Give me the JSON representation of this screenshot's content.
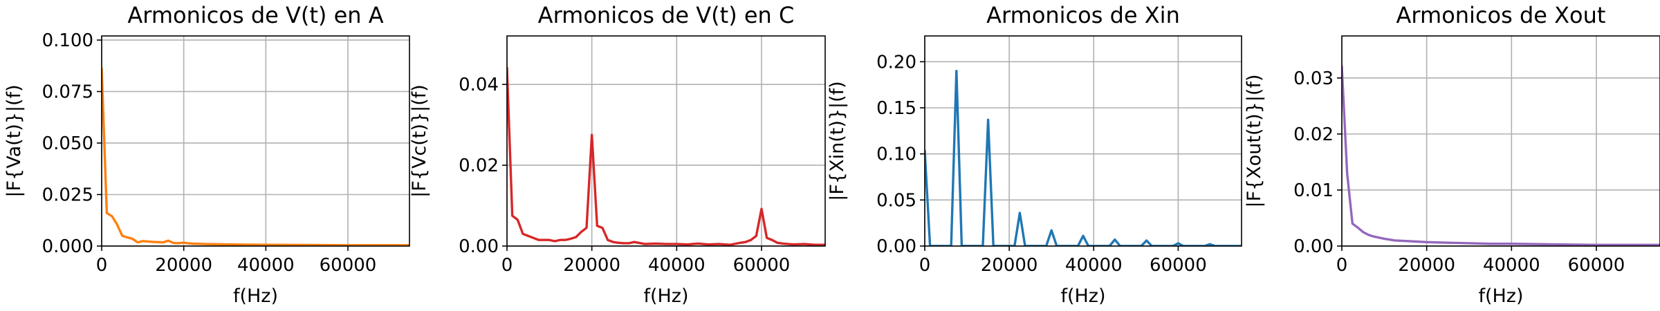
{
  "chart_data": [
    {
      "type": "line",
      "title": "Armonicos de V(t) en A",
      "xlabel": "f(Hz)",
      "ylabel": "|F{Va(t)}|(f)",
      "xlim": [
        0,
        75000
      ],
      "ylim": [
        0,
        0.102
      ],
      "xticks": [
        0,
        20000,
        40000,
        60000
      ],
      "xtick_labels": [
        "0",
        "20000",
        "40000",
        "60000"
      ],
      "yticks": [
        0,
        0.025,
        0.05,
        0.075,
        0.1
      ],
      "ytick_labels": [
        "0.000",
        "0.025",
        "0.050",
        "0.075",
        "0.100"
      ],
      "grid": true,
      "color": "#ff7f0e",
      "x": [
        0,
        1250,
        2500,
        3750,
        5000,
        6250,
        7500,
        8750,
        10000,
        11250,
        12500,
        13750,
        15000,
        16250,
        17500,
        18750,
        20000,
        21250,
        22500,
        23750,
        25000,
        30000,
        35000,
        40000,
        50000,
        60000,
        70000,
        75000
      ],
      "y": [
        0.086,
        0.016,
        0.0145,
        0.0105,
        0.005,
        0.0042,
        0.0035,
        0.0018,
        0.0024,
        0.0022,
        0.002,
        0.0019,
        0.0018,
        0.0026,
        0.0015,
        0.0014,
        0.0016,
        0.0013,
        0.0011,
        0.0011,
        0.001,
        0.0008,
        0.0007,
        0.0006,
        0.0005,
        0.0004,
        0.0004,
        0.0004
      ]
    },
    {
      "type": "line",
      "title": "Armonicos de V(t) en C",
      "xlabel": "f(Hz)",
      "ylabel": "|F{Vc(t)}|(f)",
      "xlim": [
        0,
        75000
      ],
      "ylim": [
        0,
        0.052
      ],
      "xticks": [
        0,
        20000,
        40000,
        60000
      ],
      "xtick_labels": [
        "0",
        "20000",
        "40000",
        "60000"
      ],
      "yticks": [
        0,
        0.02,
        0.04
      ],
      "ytick_labels": [
        "0.00",
        "0.02",
        "0.04"
      ],
      "grid": true,
      "color": "#d62728",
      "x": [
        0,
        1250,
        2500,
        3750,
        5000,
        6250,
        7500,
        8750,
        10000,
        11250,
        12500,
        13750,
        15000,
        16250,
        17500,
        18750,
        20000,
        21250,
        22500,
        23750,
        25000,
        26250,
        27500,
        28750,
        30000,
        32500,
        35000,
        37500,
        40000,
        42500,
        45000,
        47500,
        50000,
        52500,
        55000,
        56250,
        57500,
        58750,
        60000,
        61250,
        62500,
        63750,
        65000,
        67500,
        70000,
        72500,
        75000
      ],
      "y": [
        0.044,
        0.0075,
        0.0065,
        0.003,
        0.0025,
        0.002,
        0.0015,
        0.0015,
        0.0015,
        0.0012,
        0.0015,
        0.0015,
        0.0018,
        0.0022,
        0.0035,
        0.0045,
        0.0275,
        0.005,
        0.0045,
        0.0015,
        0.001,
        0.0008,
        0.0007,
        0.0007,
        0.001,
        0.0005,
        0.0006,
        0.0005,
        0.0005,
        0.0004,
        0.0006,
        0.0004,
        0.0005,
        0.0003,
        0.0008,
        0.001,
        0.0015,
        0.0025,
        0.0092,
        0.002,
        0.0015,
        0.0008,
        0.0006,
        0.0004,
        0.0005,
        0.0003,
        0.0003
      ]
    },
    {
      "type": "line",
      "title": "Armonicos de Xin",
      "xlabel": "f(Hz)",
      "ylabel": "|F{Xin(t)}|(f)",
      "xlim": [
        0,
        75000
      ],
      "ylim": [
        0,
        0.228
      ],
      "xticks": [
        0,
        20000,
        40000,
        60000
      ],
      "xtick_labels": [
        "0",
        "20000",
        "40000",
        "60000"
      ],
      "yticks": [
        0,
        0.05,
        0.1,
        0.15,
        0.2
      ],
      "ytick_labels": [
        "0.00",
        "0.05",
        "0.10",
        "0.15",
        "0.20"
      ],
      "grid": true,
      "color": "#1f77b4",
      "x": [
        0,
        1250,
        6250,
        7500,
        8750,
        13750,
        15000,
        16250,
        21250,
        22500,
        23750,
        28750,
        30000,
        31250,
        36250,
        37500,
        38750,
        43750,
        45000,
        46250,
        51250,
        52500,
        53750,
        58750,
        60000,
        61250,
        66250,
        67500,
        68750,
        75000
      ],
      "y": [
        0.103,
        0,
        0,
        0.19,
        0,
        0,
        0.137,
        0,
        0,
        0.036,
        0,
        0,
        0.017,
        0,
        0,
        0.011,
        0,
        0,
        0.007,
        0,
        0,
        0.006,
        0,
        0,
        0.003,
        0,
        0,
        0.002,
        0,
        0
      ]
    },
    {
      "type": "line",
      "title": "Armonicos de Xout",
      "xlabel": "f(Hz)",
      "ylabel": "|F{Xout(t)}|(f)",
      "xlim": [
        0,
        75000
      ],
      "ylim": [
        0,
        0.0375
      ],
      "xticks": [
        0,
        20000,
        40000,
        60000
      ],
      "xtick_labels": [
        "0",
        "20000",
        "40000",
        "60000"
      ],
      "yticks": [
        0,
        0.01,
        0.02,
        0.03
      ],
      "ytick_labels": [
        "0.00",
        "0.01",
        "0.02",
        "0.03"
      ],
      "grid": true,
      "color": "#9467bd",
      "x": [
        0,
        1250,
        2500,
        3750,
        5000,
        6250,
        7500,
        10000,
        12500,
        15000,
        17500,
        20000,
        25000,
        30000,
        35000,
        40000,
        50000,
        60000,
        70000,
        75000
      ],
      "y": [
        0.032,
        0.013,
        0.004,
        0.0033,
        0.0025,
        0.002,
        0.0017,
        0.0013,
        0.001,
        0.0009,
        0.0008,
        0.0007,
        0.0006,
        0.0005,
        0.0004,
        0.0004,
        0.0003,
        0.0002,
        0.0002,
        0.0002
      ]
    }
  ]
}
